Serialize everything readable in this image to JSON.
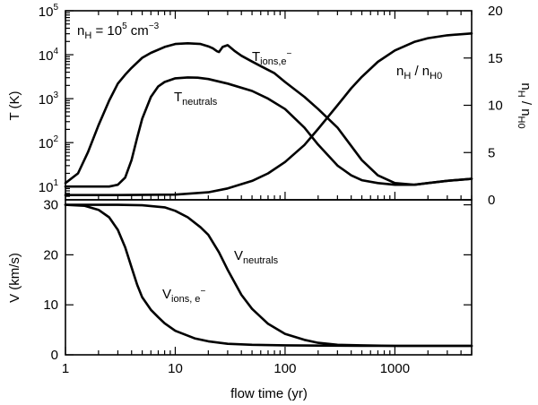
{
  "chart_data": [
    {
      "panel": "top",
      "type": "line",
      "xscale": "log",
      "xlim": [
        1,
        5000
      ],
      "xlabel": "flow time (yr)",
      "ylabel_left": "T (K)",
      "yscale_left": "log",
      "ylim_left": [
        5,
        100000
      ],
      "yticks_left": [
        "10^1",
        "10^2",
        "10^3",
        "10^4",
        "10^5"
      ],
      "ylabel_right": "n_H / n_H0",
      "ylim_right": [
        0,
        20
      ],
      "yticks_right": [
        "0",
        "5",
        "10",
        "15",
        "20"
      ],
      "condition": {
        "base": "n",
        "sub": "H",
        "eq": " = 10",
        "sup": "5",
        "unit": " cm",
        "unit_sup": "−3"
      },
      "series": [
        {
          "name": "T_ions,e−",
          "label": {
            "main": "T",
            "sub": "ions,e",
            "sup": "−"
          },
          "axis": "left",
          "x": [
            1,
            1.3,
            1.6,
            2,
            2.5,
            3,
            3.5,
            4,
            5,
            6,
            8,
            10,
            13,
            17,
            20,
            22,
            24,
            25,
            27,
            30,
            35,
            40,
            50,
            60,
            80,
            100,
            150,
            200,
            300,
            500,
            700,
            1000,
            1500,
            2000,
            3000,
            5000
          ],
          "y": [
            12,
            20,
            60,
            250,
            900,
            2200,
            3500,
            5000,
            8500,
            11000,
            15000,
            17500,
            18200,
            17500,
            15500,
            14000,
            12000,
            11500,
            15000,
            16500,
            12000,
            9500,
            7000,
            5500,
            3800,
            2400,
            1100,
            580,
            220,
            40,
            18,
            12,
            11,
            12,
            13.5,
            15
          ]
        },
        {
          "name": "T_neutrals",
          "label": {
            "main": "T",
            "sub": "neutrals"
          },
          "axis": "left",
          "x": [
            1,
            1.5,
            2,
            2.5,
            3,
            3.5,
            4,
            4.5,
            5,
            6,
            7,
            8,
            10,
            13,
            16,
            20,
            30,
            50,
            70,
            100,
            150,
            200,
            300,
            400,
            500,
            700,
            1000,
            1500,
            2000,
            3000,
            5000
          ],
          "y": [
            10,
            10,
            10,
            10,
            11,
            16,
            40,
            130,
            350,
            1100,
            1900,
            2400,
            2900,
            3050,
            3000,
            2800,
            2200,
            1500,
            1000,
            580,
            220,
            90,
            30,
            18,
            14,
            12,
            11,
            11,
            12,
            13.5,
            15
          ]
        },
        {
          "name": "n_H / n_H0",
          "label": {
            "main": "n",
            "sub": "H",
            "mid": " / n",
            "sub2": "H0"
          },
          "axis": "right",
          "x": [
            1,
            3,
            10,
            20,
            30,
            50,
            70,
            100,
            150,
            200,
            300,
            400,
            500,
            700,
            1000,
            1500,
            2000,
            3000,
            5000
          ],
          "y": [
            0.5,
            0.5,
            0.55,
            0.8,
            1.2,
            2.0,
            2.8,
            4.0,
            5.8,
            7.5,
            10,
            11.8,
            13.0,
            14.6,
            15.8,
            16.7,
            17.1,
            17.4,
            17.6
          ]
        }
      ]
    },
    {
      "panel": "bottom",
      "type": "line",
      "xscale": "log",
      "xlim": [
        1,
        5000
      ],
      "xlabel": "flow time (yr)",
      "xticks": [
        "1",
        "10",
        "100",
        "1000"
      ],
      "ylabel": "V (km/s)",
      "ylim": [
        0,
        31
      ],
      "yticks": [
        "0",
        "10",
        "20",
        "30"
      ],
      "series": [
        {
          "name": "V_neutrals",
          "label": {
            "main": "V",
            "sub": "neutrals"
          },
          "x": [
            1,
            2,
            3,
            5,
            8,
            10,
            13,
            17,
            20,
            25,
            30,
            40,
            50,
            70,
            100,
            150,
            200,
            300,
            500,
            1000,
            2000,
            5000
          ],
          "y": [
            30,
            30,
            30,
            29.9,
            29.5,
            28.8,
            27.5,
            25.5,
            24,
            20.5,
            17,
            12,
            9.2,
            6.2,
            4.2,
            3.0,
            2.4,
            2.0,
            1.9,
            1.8,
            1.8,
            1.8
          ]
        },
        {
          "name": "V_ions,e−",
          "label": {
            "main": "V",
            "sub": "ions, e",
            "sup": "−"
          },
          "x": [
            1,
            1.5,
            2,
            2.5,
            3,
            3.5,
            4,
            4.5,
            5,
            6,
            7,
            8,
            10,
            15,
            20,
            30,
            50,
            100,
            200,
            500,
            1000,
            5000
          ],
          "y": [
            30,
            29.8,
            29,
            27.5,
            25,
            21.5,
            17.5,
            14,
            11.5,
            9,
            7.5,
            6.3,
            4.8,
            3.3,
            2.7,
            2.2,
            2.0,
            1.9,
            1.85,
            1.8,
            1.8,
            1.8
          ]
        }
      ]
    }
  ]
}
